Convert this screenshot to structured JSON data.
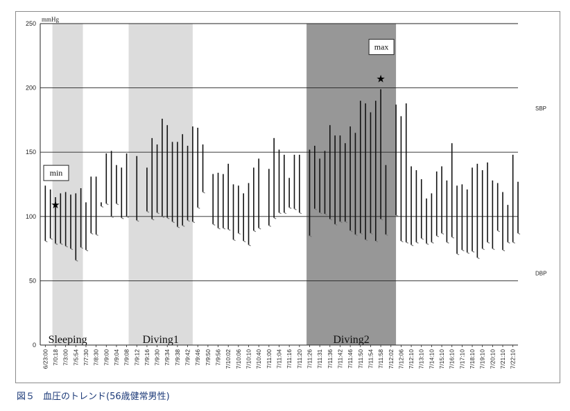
{
  "caption": {
    "figure_no": "図５",
    "text": "血圧のトレンド(56歳健常男性)"
  },
  "chart_data": {
    "type": "bar",
    "title": "",
    "xlabel": "",
    "ylabel": "",
    "y_unit": "mmHg",
    "ylim": [
      0,
      250
    ],
    "yticks": [
      0,
      50,
      100,
      150,
      200,
      250
    ],
    "grid": "horizontal",
    "series_labels": {
      "sbp": "SBP",
      "dbp": "DBP"
    },
    "x_tick_labels": [
      "6/23:00",
      "7/0:18",
      "7/3:00",
      "7/5:54",
      "7/7:30",
      "7/8:30",
      "7/9:00",
      "7/9:04",
      "7/9:08",
      "7/9:12",
      "7/9:16",
      "7/9:30",
      "7/9:34",
      "7/9:38",
      "7/9:42",
      "7/9:46",
      "7/9:50",
      "7/9:56",
      "7/10:02",
      "7/10:06",
      "7/10:10",
      "7/10:40",
      "7/11:00",
      "7/11:04",
      "7/11:16",
      "7/11:20",
      "7/11:26",
      "7/11:31",
      "7/11:36",
      "7/11:42",
      "7/11:46",
      "7/11:50",
      "7/11:54",
      "7/11:58",
      "7/12:02",
      "7/12:06",
      "7/12:10",
      "7/13:10",
      "7/14:10",
      "7/15:10",
      "7/16:10",
      "7/17:10",
      "7/18:10",
      "7/19:10",
      "7/20:10",
      "7/21:10",
      "7/22:10"
    ],
    "regions": [
      {
        "label": "Sleeping",
        "start": 1.2,
        "end": 4.2,
        "color": "#dcdcdc"
      },
      {
        "label": "Diving1",
        "start": 8.7,
        "end": 15.0,
        "color": "#dcdcdc"
      },
      {
        "label": "Diving2",
        "start": 26.2,
        "end": 35.0,
        "color": "#979797"
      }
    ],
    "annotations": [
      {
        "label": "min",
        "x": 1.5,
        "y": 109
      },
      {
        "label": "max",
        "x": 33.5,
        "y": 207
      }
    ],
    "ranges": [
      {
        "x": 0.5,
        "sbp": 124,
        "dbp": 81
      },
      {
        "x": 1.0,
        "sbp": 121,
        "dbp": 83
      },
      {
        "x": 1.5,
        "sbp": 115,
        "dbp": 79
      },
      {
        "x": 2.0,
        "sbp": 118,
        "dbp": 79
      },
      {
        "x": 2.5,
        "sbp": 119,
        "dbp": 77
      },
      {
        "x": 3.0,
        "sbp": 117,
        "dbp": 75
      },
      {
        "x": 3.5,
        "sbp": 118,
        "dbp": 66
      },
      {
        "x": 4.0,
        "sbp": 122,
        "dbp": 76
      },
      {
        "x": 4.5,
        "sbp": 111,
        "dbp": 74
      },
      {
        "x": 5.0,
        "sbp": 131,
        "dbp": 87
      },
      {
        "x": 5.5,
        "sbp": 131,
        "dbp": 86
      },
      {
        "x": 6.0,
        "sbp": 111,
        "dbp": 108
      },
      {
        "x": 6.5,
        "sbp": 149,
        "dbp": 110
      },
      {
        "x": 7.0,
        "sbp": 151,
        "dbp": 100
      },
      {
        "x": 7.5,
        "sbp": 140,
        "dbp": 110
      },
      {
        "x": 8.0,
        "sbp": 138,
        "dbp": 99
      },
      {
        "x": 8.5,
        "sbp": 149,
        "dbp": 100
      },
      {
        "x": 9.5,
        "sbp": 147,
        "dbp": 97
      },
      {
        "x": 10.5,
        "sbp": 138,
        "dbp": 104
      },
      {
        "x": 11.0,
        "sbp": 161,
        "dbp": 98
      },
      {
        "x": 11.5,
        "sbp": 156,
        "dbp": 103
      },
      {
        "x": 12.0,
        "sbp": 176,
        "dbp": 100
      },
      {
        "x": 12.5,
        "sbp": 171,
        "dbp": 99
      },
      {
        "x": 13.0,
        "sbp": 158,
        "dbp": 96
      },
      {
        "x": 13.5,
        "sbp": 158,
        "dbp": 92
      },
      {
        "x": 14.0,
        "sbp": 164,
        "dbp": 93
      },
      {
        "x": 14.5,
        "sbp": 155,
        "dbp": 97
      },
      {
        "x": 15.0,
        "sbp": 170,
        "dbp": 96
      },
      {
        "x": 15.5,
        "sbp": 169,
        "dbp": 107
      },
      {
        "x": 16.0,
        "sbp": 156,
        "dbp": 119
      },
      {
        "x": 17.0,
        "sbp": 133,
        "dbp": 94
      },
      {
        "x": 17.5,
        "sbp": 134,
        "dbp": 91
      },
      {
        "x": 18.0,
        "sbp": 133,
        "dbp": 91
      },
      {
        "x": 18.5,
        "sbp": 141,
        "dbp": 90
      },
      {
        "x": 19.0,
        "sbp": 125,
        "dbp": 82
      },
      {
        "x": 19.5,
        "sbp": 124,
        "dbp": 87
      },
      {
        "x": 20.0,
        "sbp": 118,
        "dbp": 81
      },
      {
        "x": 20.5,
        "sbp": 126,
        "dbp": 78
      },
      {
        "x": 21.0,
        "sbp": 138,
        "dbp": 89
      },
      {
        "x": 21.5,
        "sbp": 145,
        "dbp": 91
      },
      {
        "x": 22.5,
        "sbp": 137,
        "dbp": 93
      },
      {
        "x": 23.0,
        "sbp": 161,
        "dbp": 99
      },
      {
        "x": 23.5,
        "sbp": 152,
        "dbp": 103
      },
      {
        "x": 24.0,
        "sbp": 148,
        "dbp": 103
      },
      {
        "x": 24.5,
        "sbp": 130,
        "dbp": 107
      },
      {
        "x": 25.0,
        "sbp": 148,
        "dbp": 106
      },
      {
        "x": 25.5,
        "sbp": 148,
        "dbp": 103
      },
      {
        "x": 26.5,
        "sbp": 152,
        "dbp": 85
      },
      {
        "x": 27.0,
        "sbp": 155,
        "dbp": 106
      },
      {
        "x": 27.5,
        "sbp": 145,
        "dbp": 103
      },
      {
        "x": 28.0,
        "sbp": 151,
        "dbp": 102
      },
      {
        "x": 28.5,
        "sbp": 171,
        "dbp": 98
      },
      {
        "x": 29.0,
        "sbp": 163,
        "dbp": 94
      },
      {
        "x": 29.5,
        "sbp": 163,
        "dbp": 96
      },
      {
        "x": 30.0,
        "sbp": 157,
        "dbp": 96
      },
      {
        "x": 30.5,
        "sbp": 170,
        "dbp": 89
      },
      {
        "x": 31.0,
        "sbp": 165,
        "dbp": 86
      },
      {
        "x": 31.5,
        "sbp": 190,
        "dbp": 87
      },
      {
        "x": 32.0,
        "sbp": 188,
        "dbp": 82
      },
      {
        "x": 32.5,
        "sbp": 181,
        "dbp": 87
      },
      {
        "x": 33.0,
        "sbp": 190,
        "dbp": 81
      },
      {
        "x": 33.5,
        "sbp": 199,
        "dbp": 98
      },
      {
        "x": 34.0,
        "sbp": 140,
        "dbp": 86
      },
      {
        "x": 35.0,
        "sbp": 187,
        "dbp": 101
      },
      {
        "x": 35.5,
        "sbp": 178,
        "dbp": 81
      },
      {
        "x": 36.0,
        "sbp": 188,
        "dbp": 80
      },
      {
        "x": 36.5,
        "sbp": 139,
        "dbp": 78
      },
      {
        "x": 37.0,
        "sbp": 136,
        "dbp": 80
      },
      {
        "x": 37.5,
        "sbp": 129,
        "dbp": 83
      },
      {
        "x": 38.0,
        "sbp": 114,
        "dbp": 79
      },
      {
        "x": 38.5,
        "sbp": 118,
        "dbp": 80
      },
      {
        "x": 39.0,
        "sbp": 135,
        "dbp": 85
      },
      {
        "x": 39.5,
        "sbp": 139,
        "dbp": 87
      },
      {
        "x": 40.0,
        "sbp": 128,
        "dbp": 80
      },
      {
        "x": 40.5,
        "sbp": 157,
        "dbp": 84
      },
      {
        "x": 41.0,
        "sbp": 124,
        "dbp": 71
      },
      {
        "x": 41.5,
        "sbp": 125,
        "dbp": 74
      },
      {
        "x": 42.0,
        "sbp": 121,
        "dbp": 72
      },
      {
        "x": 42.5,
        "sbp": 138,
        "dbp": 73
      },
      {
        "x": 43.0,
        "sbp": 141,
        "dbp": 68
      },
      {
        "x": 43.5,
        "sbp": 136,
        "dbp": 75
      },
      {
        "x": 44.0,
        "sbp": 142,
        "dbp": 80
      },
      {
        "x": 44.5,
        "sbp": 128,
        "dbp": 75
      },
      {
        "x": 45.0,
        "sbp": 126,
        "dbp": 89
      },
      {
        "x": 45.5,
        "sbp": 119,
        "dbp": 74
      },
      {
        "x": 46.0,
        "sbp": 109,
        "dbp": 80
      },
      {
        "x": 46.5,
        "sbp": 148,
        "dbp": 80
      },
      {
        "x": 47.0,
        "sbp": 127,
        "dbp": 87
      }
    ]
  }
}
